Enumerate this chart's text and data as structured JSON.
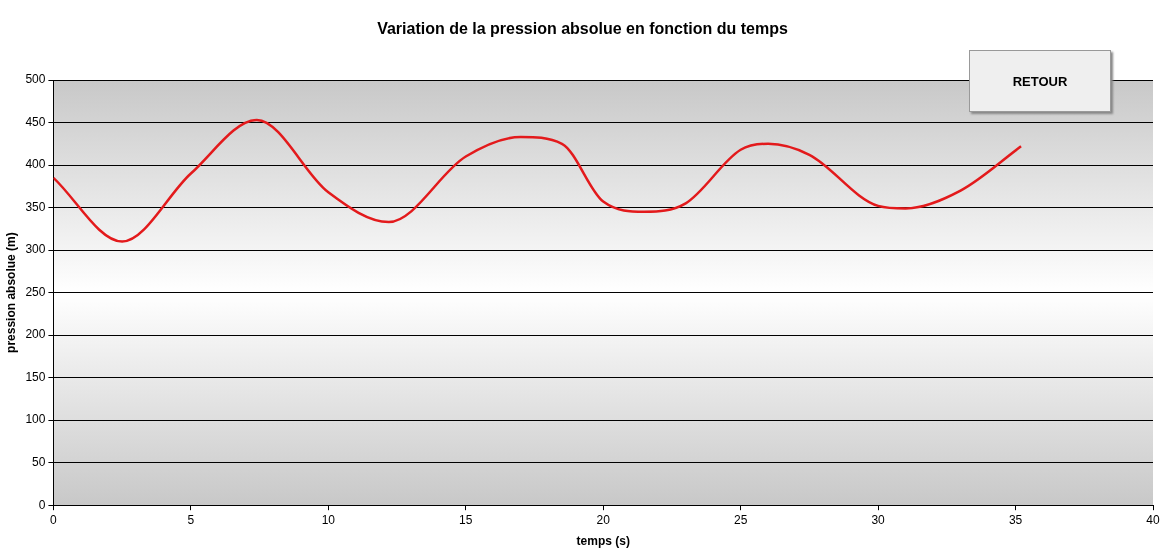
{
  "chart_data": {
    "type": "line",
    "title": "Variation de la pression absolue en fonction du temps",
    "xlabel": "temps (s)",
    "ylabel": "pression absolue (m)",
    "annotations": [
      "RETOUR"
    ],
    "series": [
      {
        "color": "#e31a1c",
        "x": [
          0,
          2.5,
          5,
          7.4,
          10,
          12.2,
          15,
          17,
          18.5,
          20,
          21.5,
          23,
          25,
          26,
          27.5,
          30,
          31,
          33,
          35.2
        ],
        "values": [
          385,
          310,
          390,
          453,
          368,
          333,
          410,
          433,
          425,
          357,
          345,
          355,
          418,
          425,
          412,
          352,
          349,
          370,
          422
        ]
      }
    ],
    "xlim": [
      0,
      40
    ],
    "xticks": [
      0,
      5,
      10,
      15,
      20,
      25,
      30,
      35,
      40
    ],
    "ylim": [
      0,
      500
    ],
    "yticks": [
      0,
      50,
      100,
      150,
      200,
      250,
      300,
      350,
      400,
      450,
      500
    ],
    "grid": "y",
    "legend": false,
    "marker": "none",
    "line_style": "solid"
  }
}
